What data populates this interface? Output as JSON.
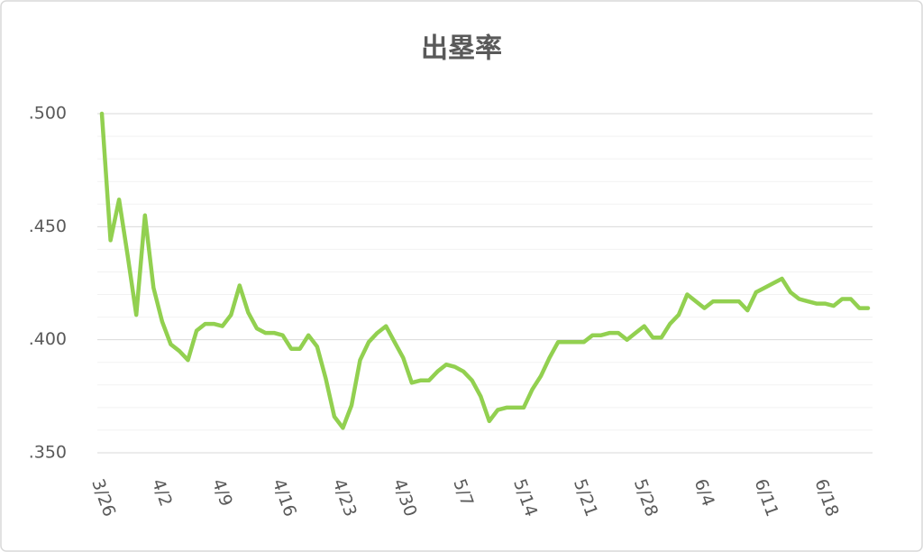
{
  "chart_data": {
    "type": "line",
    "title": "出塁率",
    "categories": [
      "3/26",
      null,
      null,
      null,
      null,
      null,
      null,
      "4/2",
      null,
      null,
      null,
      null,
      null,
      null,
      "4/9",
      null,
      null,
      null,
      null,
      null,
      null,
      "4/16",
      null,
      null,
      null,
      null,
      null,
      null,
      "4/23",
      null,
      null,
      null,
      null,
      null,
      null,
      "4/30",
      null,
      null,
      null,
      null,
      null,
      null,
      "5/7",
      null,
      null,
      null,
      null,
      null,
      null,
      "5/14",
      null,
      null,
      null,
      null,
      null,
      null,
      "5/21",
      null,
      null,
      null,
      null,
      null,
      null,
      "5/28",
      null,
      null,
      null,
      null,
      null,
      null,
      "6/4",
      null,
      null,
      null,
      null,
      null,
      null,
      "6/11",
      null,
      null,
      null,
      null,
      null,
      null,
      "6/18",
      null,
      null,
      null,
      null,
      null
    ],
    "series": [
      {
        "name": "出塁率",
        "color": "#92d050",
        "values": [
          0.5,
          0.444,
          0.462,
          0.437,
          0.411,
          0.455,
          0.423,
          0.408,
          0.398,
          0.395,
          0.391,
          0.404,
          0.407,
          0.407,
          0.406,
          0.411,
          0.424,
          0.412,
          0.405,
          0.403,
          0.403,
          0.402,
          0.396,
          0.396,
          0.402,
          0.397,
          0.383,
          0.366,
          0.361,
          0.371,
          0.391,
          0.399,
          0.403,
          0.406,
          0.399,
          0.392,
          0.381,
          0.382,
          0.382,
          0.386,
          0.389,
          0.388,
          0.386,
          0.382,
          0.375,
          0.364,
          0.369,
          0.37,
          0.37,
          0.37,
          0.378,
          0.384,
          0.392,
          0.399,
          0.399,
          0.399,
          0.399,
          0.402,
          0.402,
          0.403,
          0.403,
          0.4,
          0.403,
          0.406,
          0.401,
          0.401,
          0.407,
          0.411,
          0.42,
          0.417,
          0.414,
          0.417,
          0.417,
          0.417,
          0.417,
          0.413,
          0.421,
          0.423,
          0.425,
          0.427,
          0.421,
          0.418,
          0.417,
          0.416,
          0.416,
          0.415,
          0.418,
          0.418,
          0.414,
          0.414
        ]
      }
    ],
    "ylim": [
      0.35,
      0.5
    ],
    "yticks": [
      {
        "value": 0.35,
        "label": ".350"
      },
      {
        "value": 0.4,
        "label": ".400"
      },
      {
        "value": 0.45,
        "label": ".450"
      },
      {
        "value": 0.5,
        "label": ".500"
      }
    ],
    "y_minor_ticks": [
      0.36,
      0.37,
      0.38,
      0.39,
      0.41,
      0.42,
      0.43,
      0.44,
      0.46,
      0.47,
      0.48,
      0.49
    ],
    "grid": true
  }
}
